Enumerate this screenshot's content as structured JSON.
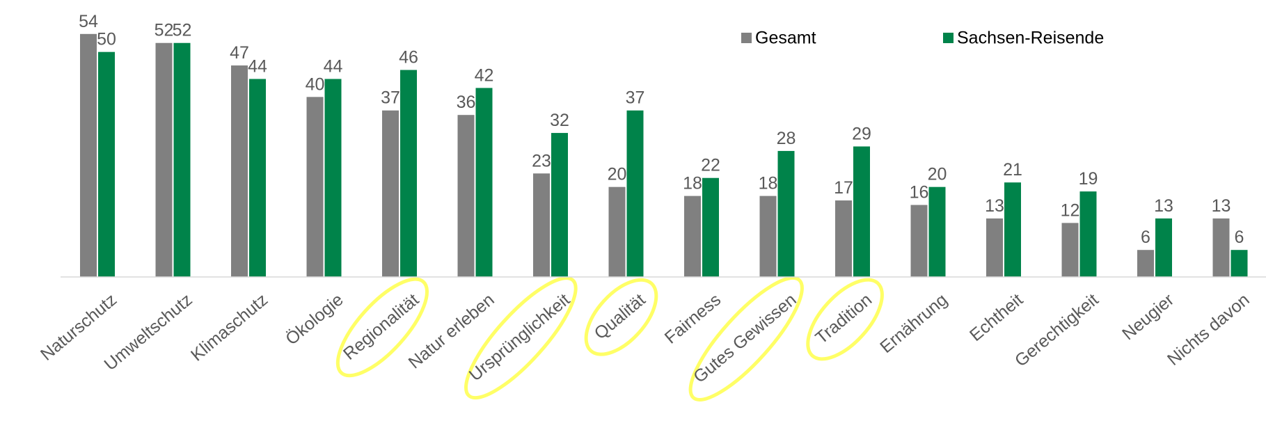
{
  "chart_data": {
    "type": "bar",
    "categories": [
      "Naturschutz",
      "Umweltschutz",
      "Klimaschutz",
      "Ökologie",
      "Regionalität",
      "Natur erleben",
      "Ursprünglichkeit",
      "Qualität",
      "Fairness",
      "Gutes Gewissen",
      "Tradition",
      "Ernährung",
      "Echtheit",
      "Gerechtigkeit",
      "Neugier",
      "Nichts davon"
    ],
    "series": [
      {
        "name": "Gesamt",
        "color": "#808080",
        "values": [
          54,
          52,
          47,
          40,
          37,
          36,
          23,
          20,
          18,
          18,
          17,
          16,
          13,
          12,
          6,
          13
        ]
      },
      {
        "name": "Sachsen-Reisende",
        "color": "#00834a",
        "values": [
          50,
          52,
          44,
          44,
          46,
          42,
          32,
          37,
          22,
          28,
          29,
          20,
          21,
          19,
          13,
          6
        ]
      }
    ],
    "ylim": [
      0,
      60
    ],
    "legend": "top-right"
  }
}
